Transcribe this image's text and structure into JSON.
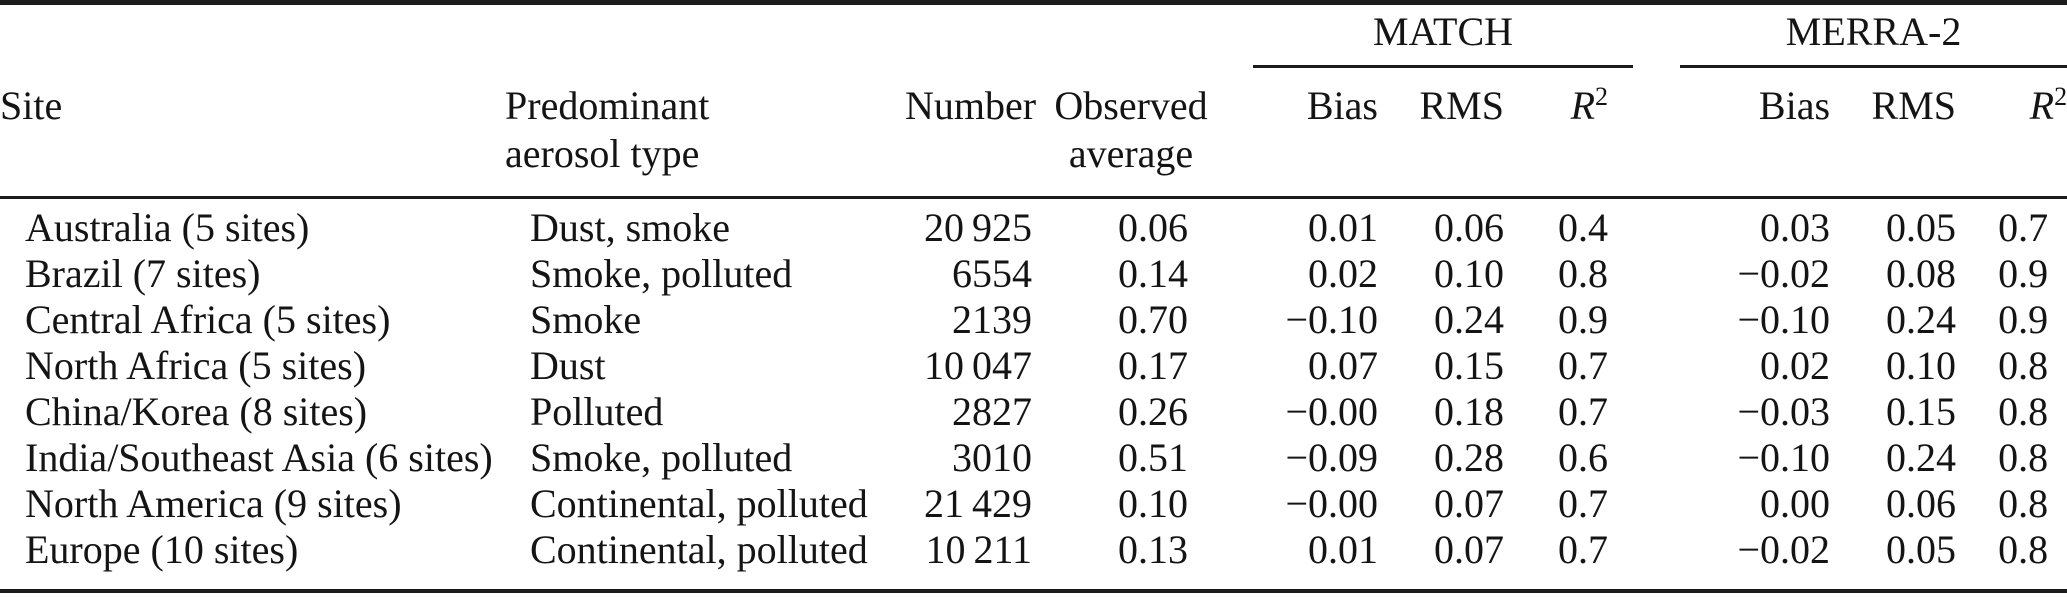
{
  "table": {
    "header": {
      "site": "Site",
      "aerosol_line1": "Predominant",
      "aerosol_line2": "aerosol type",
      "number": "Number",
      "observed_line1": "Observed",
      "observed_line2": "average",
      "group_match": "MATCH",
      "group_merra2": "MERRA-2",
      "bias": "Bias",
      "rms": "RMS",
      "r2_base": "R",
      "r2_sup": "2"
    },
    "rows": [
      {
        "site": "Australia (5 sites)",
        "aerosol": "Dust, smoke",
        "number": "20 925",
        "observed": "0.06",
        "match_bias": "0.01",
        "match_rms": "0.06",
        "match_r2": "0.4",
        "merra2_bias": "0.03",
        "merra2_rms": "0.05",
        "merra2_r2": "0.7"
      },
      {
        "site": "Brazil (7 sites)",
        "aerosol": "Smoke, polluted",
        "number": "6554",
        "observed": "0.14",
        "match_bias": "0.02",
        "match_rms": "0.10",
        "match_r2": "0.8",
        "merra2_bias": "−0.02",
        "merra2_rms": "0.08",
        "merra2_r2": "0.9"
      },
      {
        "site": "Central Africa (5 sites)",
        "aerosol": "Smoke",
        "number": "2139",
        "observed": "0.70",
        "match_bias": "−0.10",
        "match_rms": "0.24",
        "match_r2": "0.9",
        "merra2_bias": "−0.10",
        "merra2_rms": "0.24",
        "merra2_r2": "0.9"
      },
      {
        "site": "North Africa (5 sites)",
        "aerosol": "Dust",
        "number": "10 047",
        "observed": "0.17",
        "match_bias": "0.07",
        "match_rms": "0.15",
        "match_r2": "0.7",
        "merra2_bias": "0.02",
        "merra2_rms": "0.10",
        "merra2_r2": "0.8"
      },
      {
        "site": "China/Korea (8 sites)",
        "aerosol": "Polluted",
        "number": "2827",
        "observed": "0.26",
        "match_bias": "−0.00",
        "match_rms": "0.18",
        "match_r2": "0.7",
        "merra2_bias": "−0.03",
        "merra2_rms": "0.15",
        "merra2_r2": "0.8"
      },
      {
        "site": "India/Southeast Asia (6 sites)",
        "aerosol": "Smoke, polluted",
        "number": "3010",
        "observed": "0.51",
        "match_bias": "−0.09",
        "match_rms": "0.28",
        "match_r2": "0.6",
        "merra2_bias": "−0.10",
        "merra2_rms": "0.24",
        "merra2_r2": "0.8"
      },
      {
        "site": "North America (9 sites)",
        "aerosol": "Continental, polluted",
        "number": "21 429",
        "observed": "0.10",
        "match_bias": "−0.00",
        "match_rms": "0.07",
        "match_r2": "0.7",
        "merra2_bias": "0.00",
        "merra2_rms": "0.06",
        "merra2_r2": "0.8"
      },
      {
        "site": "Europe (10 sites)",
        "aerosol": "Continental, polluted",
        "number": "10 211",
        "observed": "0.13",
        "match_bias": "0.01",
        "match_rms": "0.07",
        "match_r2": "0.7",
        "merra2_bias": "−0.02",
        "merra2_rms": "0.05",
        "merra2_r2": "0.8"
      }
    ]
  },
  "colors": {
    "text": "#141414",
    "rule": "#1c1c1c",
    "background": "#ffffff"
  }
}
